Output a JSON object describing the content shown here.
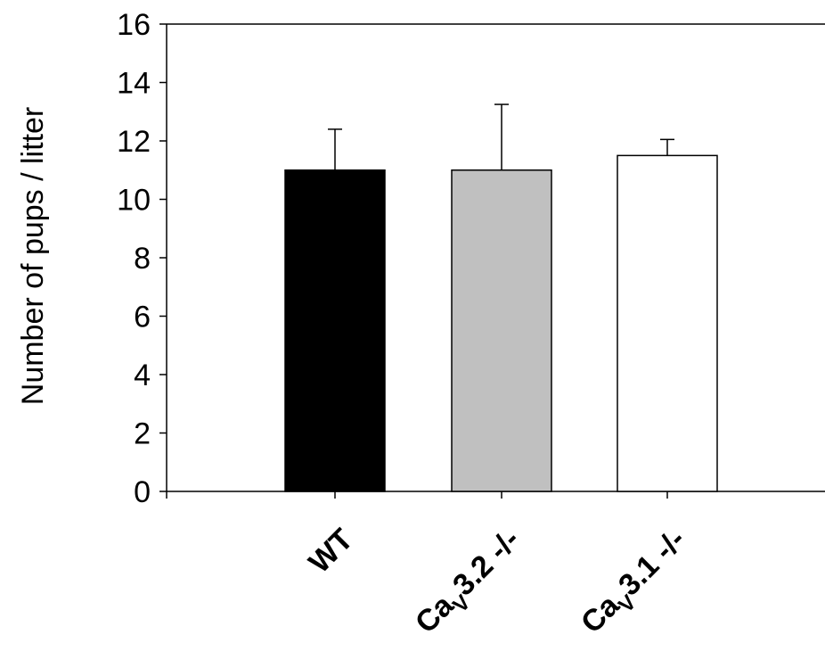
{
  "chart_data": {
    "type": "bar",
    "title": "",
    "xlabel": "",
    "ylabel": "Number of pups / litter",
    "ylim": [
      0,
      16
    ],
    "yticks": [
      0,
      2,
      4,
      6,
      8,
      10,
      12,
      14,
      16
    ],
    "categories": [
      {
        "label": "WT",
        "base": "WT",
        "sub": "",
        "suffix": ""
      },
      {
        "label": "CaV3.2 -/-",
        "base": "Ca",
        "sub": "V",
        "suffix": "3.2 -/-"
      },
      {
        "label": "CaV3.1 -/-",
        "base": "Ca",
        "sub": "V",
        "suffix": "3.1 -/-"
      }
    ],
    "values": [
      11.0,
      11.0,
      11.5
    ],
    "errors": [
      1.4,
      2.25,
      0.55
    ],
    "colors": [
      "#000000",
      "#c0c0c0",
      "#ffffff"
    ],
    "grid": false
  }
}
